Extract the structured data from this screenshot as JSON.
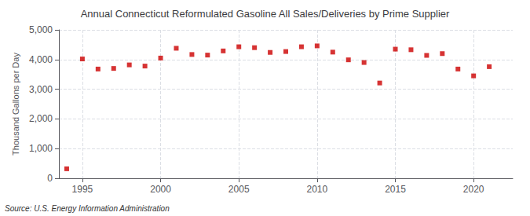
{
  "chart_data": {
    "type": "scatter",
    "title": "Annual Connecticut Reformulated Gasoline All Sales/Deliveries by Prime Supplier",
    "ylabel": "Thousand Gallons per Day",
    "annotation": "Source: U.S. Energy Information Administration",
    "x": [
      1994,
      1995,
      1996,
      1997,
      1998,
      1999,
      2000,
      2001,
      2002,
      2003,
      2004,
      2005,
      2006,
      2007,
      2008,
      2009,
      2010,
      2011,
      2012,
      2013,
      2014,
      2015,
      2016,
      2017,
      2018,
      2019,
      2020,
      2021
    ],
    "values": [
      320,
      4020,
      3680,
      3700,
      3820,
      3780,
      4050,
      4380,
      4170,
      4150,
      4290,
      4430,
      4400,
      4240,
      4270,
      4430,
      4460,
      4250,
      3990,
      3900,
      3210,
      4350,
      4330,
      4140,
      4200,
      3680,
      3450,
      3760
    ],
    "color": "#cc0000",
    "marker": "square",
    "xlim": [
      1993.5,
      2022.5
    ],
    "xticks": [
      1995,
      2000,
      2005,
      2010,
      2015,
      2020
    ],
    "ylim": [
      0,
      5000
    ],
    "yticks": [
      0,
      {
        "value": 1000,
        "label": "1,000"
      },
      {
        "value": 2000,
        "label": "2,000"
      },
      {
        "value": 3000,
        "label": "3,000"
      },
      {
        "value": 4000,
        "label": "4,000"
      },
      {
        "value": 5000,
        "label": "5,000"
      }
    ],
    "grid": true
  }
}
